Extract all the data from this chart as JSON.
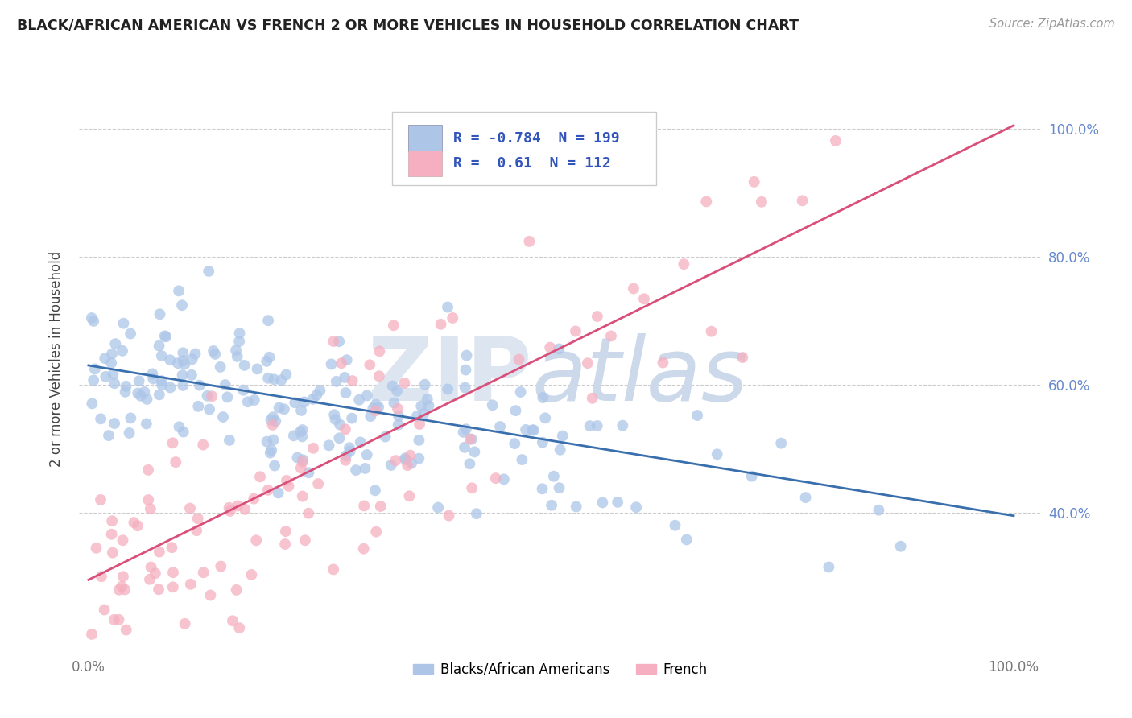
{
  "title": "BLACK/AFRICAN AMERICAN VS FRENCH 2 OR MORE VEHICLES IN HOUSEHOLD CORRELATION CHART",
  "source": "Source: ZipAtlas.com",
  "ylabel": "2 or more Vehicles in Household",
  "blue_R": -0.784,
  "blue_N": 199,
  "pink_R": 0.61,
  "pink_N": 112,
  "blue_color": "#adc6e8",
  "pink_color": "#f5afc0",
  "blue_line_color": "#3a6fad",
  "pink_line_color": "#d94f7a",
  "legend_text_color": "#3355bb",
  "grid_color": "#cccccc",
  "ytick_color": "#6688cc",
  "ytick_positions": [
    0.4,
    0.6,
    0.8,
    1.0
  ],
  "ytick_labels": [
    "40.0%",
    "60.0%",
    "80.0%",
    "100.0%"
  ],
  "xtick_labels": [
    "0.0%",
    "100.0%"
  ],
  "ylim_low": 0.18,
  "ylim_high": 1.1,
  "xlim_low": -0.01,
  "xlim_high": 1.03,
  "blue_line_x0": 0.0,
  "blue_line_y0": 0.63,
  "blue_line_x1": 1.0,
  "blue_line_y1": 0.395,
  "pink_line_x0": 0.0,
  "pink_line_y0": 0.295,
  "pink_line_x1": 1.0,
  "pink_line_y1": 1.005
}
